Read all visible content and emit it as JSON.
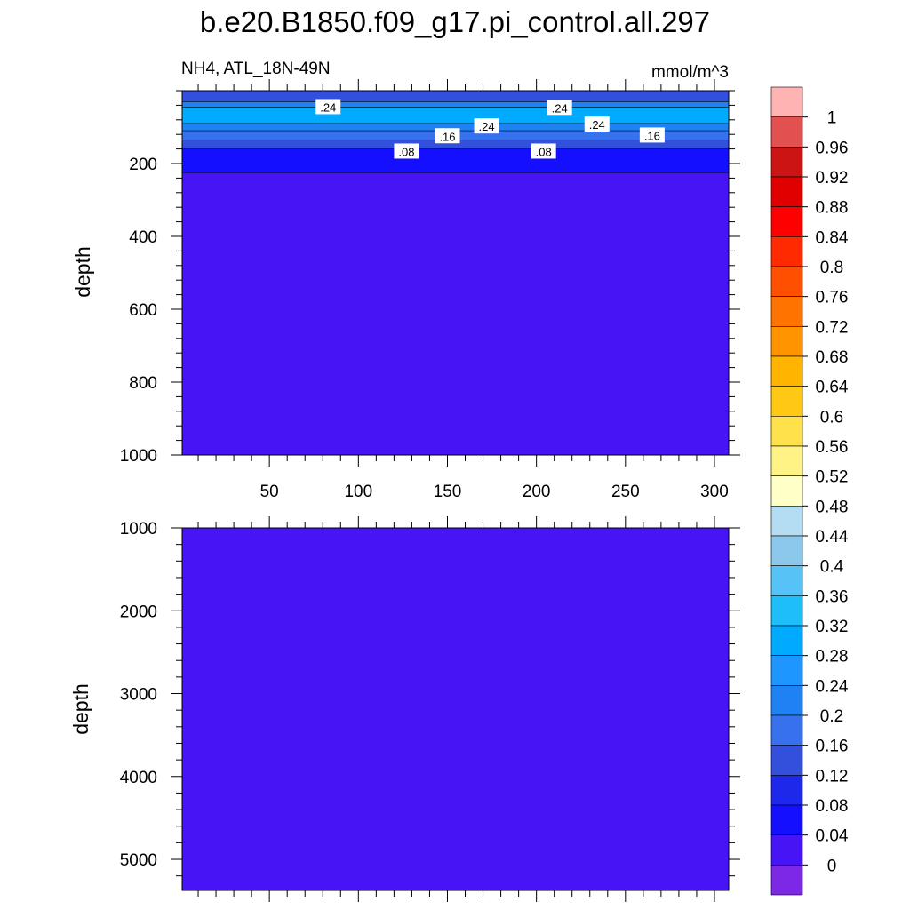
{
  "title": "b.e20.B1850.f09_g17.pi_control.all.297",
  "subtitle_left": "NH4, ATL_18N-49N",
  "subtitle_right": "mmol/m^3",
  "chart_data": {
    "type": "heatmap",
    "variable": "NH4",
    "region": "ATL_18N-49N",
    "units": "mmol/m^3",
    "x_range": [
      1,
      308
    ],
    "x_ticks": [
      50,
      100,
      150,
      200,
      250,
      300
    ],
    "panels": [
      {
        "name": "upper",
        "ylabel": "depth",
        "ylim": [
          0,
          1000
        ],
        "y_reversed": true,
        "y_ticks": [
          200,
          400,
          600,
          800,
          1000
        ],
        "layers": [
          {
            "depth_top": 0,
            "depth_bottom": 30,
            "value": 0.14
          },
          {
            "depth_top": 30,
            "depth_bottom": 45,
            "value": 0.22
          },
          {
            "depth_top": 45,
            "depth_bottom": 90,
            "value": 0.3
          },
          {
            "depth_top": 90,
            "depth_bottom": 110,
            "value": 0.22
          },
          {
            "depth_top": 110,
            "depth_bottom": 135,
            "value": 0.18
          },
          {
            "depth_top": 135,
            "depth_bottom": 160,
            "value": 0.14
          },
          {
            "depth_top": 160,
            "depth_bottom": 225,
            "value": 0.06
          },
          {
            "depth_top": 225,
            "depth_bottom": 1000,
            "value": 0.02
          }
        ],
        "contour_labels": [
          {
            "x": 83,
            "depth": 45,
            "text": ".24"
          },
          {
            "x": 213,
            "depth": 47,
            "text": ".24"
          },
          {
            "x": 172,
            "depth": 98,
            "text": ".24"
          },
          {
            "x": 234,
            "depth": 93,
            "text": ".24"
          },
          {
            "x": 150,
            "depth": 125,
            "text": ".16"
          },
          {
            "x": 265,
            "depth": 123,
            "text": ".16"
          },
          {
            "x": 127,
            "depth": 167,
            "text": ".08"
          },
          {
            "x": 204,
            "depth": 167,
            "text": ".08"
          }
        ]
      },
      {
        "name": "lower",
        "ylabel": "depth",
        "ylim": [
          1000,
          5375
        ],
        "y_reversed": true,
        "y_ticks": [
          1000,
          2000,
          3000,
          4000,
          5000
        ],
        "layers": [
          {
            "depth_top": 1000,
            "depth_bottom": 5375,
            "value": 0.02
          }
        ]
      }
    ],
    "colorbar": {
      "levels": [
        "1",
        "0.96",
        "0.92",
        "0.88",
        "0.84",
        "0.8",
        "0.76",
        "0.72",
        "0.68",
        "0.64",
        "0.6",
        "0.56",
        "0.52",
        "0.48",
        "0.44",
        "0.4",
        "0.36",
        "0.32",
        "0.28",
        "0.24",
        "0.2",
        "0.16",
        "0.12",
        "0.08",
        "0.04",
        "0"
      ],
      "colors": [
        "#ffb3b3",
        "#e35050",
        "#cc1414",
        "#e00000",
        "#ff0000",
        "#ff2a00",
        "#ff5000",
        "#ff7300",
        "#ff9300",
        "#ffb400",
        "#ffc814",
        "#ffe14b",
        "#fff385",
        "#ffffc8",
        "#b4dcf2",
        "#8cc8ec",
        "#55c3f5",
        "#1ebefa",
        "#00aaff",
        "#1e96ff",
        "#1e82f5",
        "#3771ee",
        "#3250dc",
        "#1e28eb",
        "#140fff",
        "#4614f5",
        "#7d28e6"
      ]
    }
  }
}
